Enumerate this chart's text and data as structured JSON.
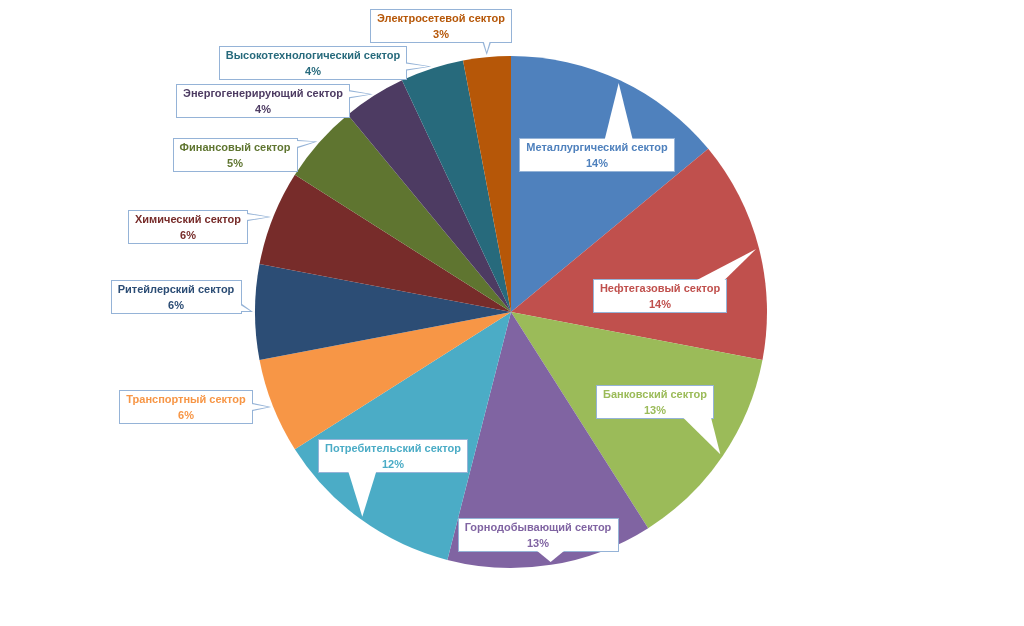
{
  "chart_data": {
    "type": "pie",
    "categories": [
      "Металлургический сектор",
      "Нефтегазовый сектор",
      "Банковский сектор",
      "Горнодобывающий сектор",
      "Потребительский сектор",
      "Транспортный сектор",
      "Ритейлерский сектор",
      "Химический сектор",
      "Финансовый сектор",
      "Энергогенерирующий сектор",
      "Высокотехнологический сектор",
      "Электросетевой сектор"
    ],
    "values": [
      14,
      14,
      13,
      13,
      12,
      6,
      6,
      6,
      5,
      4,
      4,
      3
    ],
    "colors": [
      "#4f81bd",
      "#c0504d",
      "#9bbb59",
      "#8064a2",
      "#4bacc6",
      "#f79646",
      "#2c4d75",
      "#772c2a",
      "#5f7530",
      "#4d3b62",
      "#276a7c",
      "#b65708"
    ],
    "value_labels": [
      "14%",
      "14%",
      "13%",
      "13%",
      "12%",
      "6%",
      "6%",
      "6%",
      "5%",
      "4%",
      "4%",
      "3%"
    ]
  }
}
